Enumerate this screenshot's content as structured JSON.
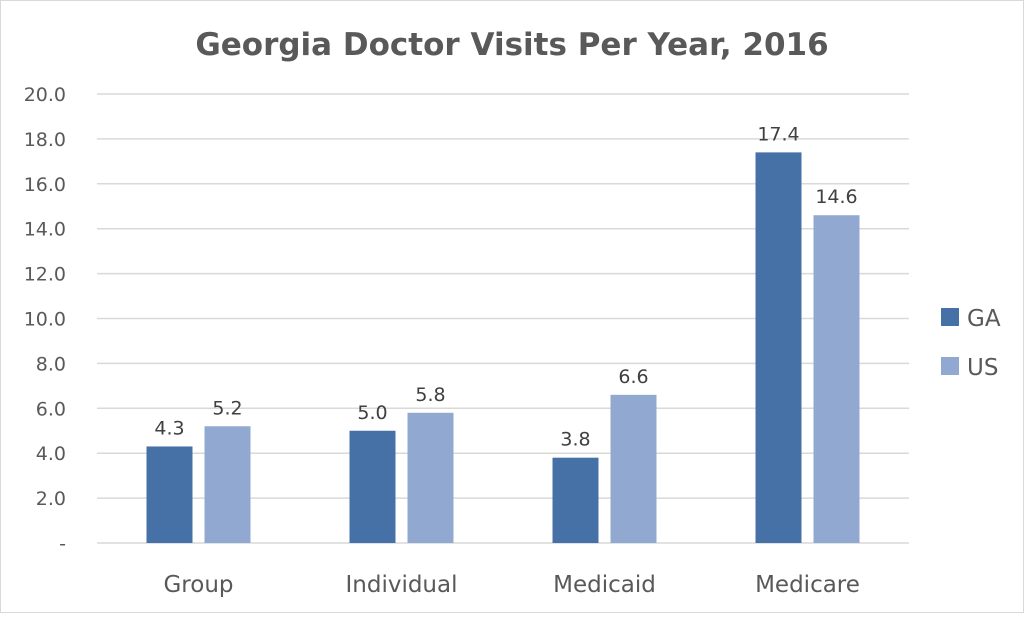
{
  "chart_data": {
    "type": "bar",
    "title": "Georgia Doctor Visits Per Year, 2016",
    "xlabel": "",
    "ylabel": "",
    "categories": [
      "Group",
      "Individual",
      "Medicaid",
      "Medicare"
    ],
    "series": [
      {
        "name": "GA",
        "values": [
          4.3,
          5.0,
          3.8,
          17.4
        ],
        "color": "#4571a7"
      },
      {
        "name": "US",
        "values": [
          5.2,
          5.8,
          6.6,
          14.6
        ],
        "color": "#91a9d1"
      }
    ],
    "data_labels": [
      [
        "4.3",
        "5.0",
        "3.8",
        "17.4"
      ],
      [
        "5.2",
        "5.8",
        "6.6",
        "14.6"
      ]
    ],
    "ylim": [
      0,
      20
    ],
    "yticks": [
      0,
      2,
      4,
      6,
      8,
      10,
      12,
      14,
      16,
      18,
      20
    ],
    "ytick_labels": [
      "-",
      "2.0",
      "4.0",
      "6.0",
      "8.0",
      "10.0",
      "12.0",
      "14.0",
      "16.0",
      "18.0",
      "20.0"
    ],
    "grid": true,
    "legend_position": "right"
  }
}
